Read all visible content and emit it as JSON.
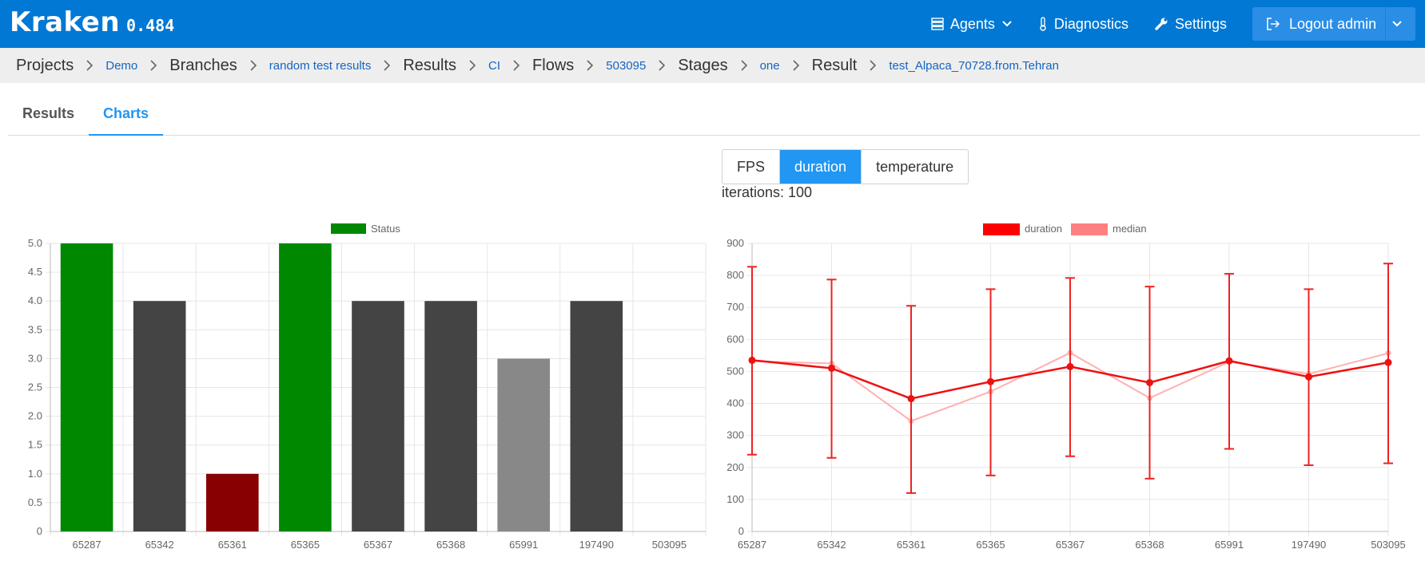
{
  "app": {
    "name": "Kraken",
    "version": "0.484"
  },
  "nav": {
    "agents": "Agents",
    "diagnostics": "Diagnostics",
    "settings": "Settings",
    "logout": "Logout admin"
  },
  "breadcrumb": [
    {
      "head": "Projects",
      "link": "Demo"
    },
    {
      "head": "Branches",
      "link": "random test results"
    },
    {
      "head": "Results",
      "link": "CI"
    },
    {
      "head": "Flows",
      "link": "503095"
    },
    {
      "head": "Stages",
      "link": "one"
    },
    {
      "head": "Result",
      "link": "test_Alpaca_70728.from.Tehran"
    }
  ],
  "tabs": [
    {
      "label": "Results",
      "active": false
    },
    {
      "label": "Charts",
      "active": true
    }
  ],
  "metric_selector": {
    "options": [
      "FPS",
      "duration",
      "temperature"
    ],
    "selected": "duration"
  },
  "iterations_text": "iterations: 100",
  "colors": {
    "topbar": "#0078d4",
    "accent": "#2196f3",
    "status_pass": "#008800",
    "status_error": "#880000",
    "status_dark": "#444444",
    "status_gray": "#888888",
    "duration": "#ff0000",
    "median": "#ff8080"
  },
  "chart_data": [
    {
      "type": "bar",
      "legend": [
        "Status"
      ],
      "categories": [
        "65287",
        "65342",
        "65361",
        "65365",
        "65367",
        "65368",
        "65991",
        "197490",
        "503095"
      ],
      "values": [
        5,
        4,
        1,
        5,
        4,
        4,
        3,
        4,
        0
      ],
      "bar_colors": [
        "#008800",
        "#444444",
        "#880000",
        "#008800",
        "#444444",
        "#444444",
        "#888888",
        "#444444",
        "#444444"
      ],
      "ylim": [
        0,
        5
      ],
      "yticks": [
        "0",
        "0.5",
        "1.0",
        "1.5",
        "2.0",
        "2.5",
        "3.0",
        "3.5",
        "4.0",
        "4.5",
        "5.0"
      ],
      "grid": true,
      "legend_position": "top"
    },
    {
      "type": "line",
      "categories": [
        "65287",
        "65342",
        "65361",
        "65365",
        "65367",
        "65368",
        "65991",
        "197490",
        "503095"
      ],
      "series": [
        {
          "name": "duration",
          "values": [
            535,
            510,
            415,
            468,
            515,
            465,
            533,
            483,
            528
          ],
          "error_low": [
            240,
            230,
            120,
            175,
            235,
            165,
            258,
            207,
            213
          ],
          "error_high": [
            827,
            787,
            705,
            757,
            792,
            765,
            805,
            757,
            837
          ]
        },
        {
          "name": "median",
          "values": [
            532,
            525,
            345,
            437,
            558,
            417,
            530,
            492,
            557
          ]
        }
      ],
      "ylim": [
        0,
        900
      ],
      "yticks": [
        "0",
        "100",
        "200",
        "300",
        "400",
        "500",
        "600",
        "700",
        "800",
        "900"
      ],
      "grid": true,
      "legend_position": "top"
    }
  ]
}
